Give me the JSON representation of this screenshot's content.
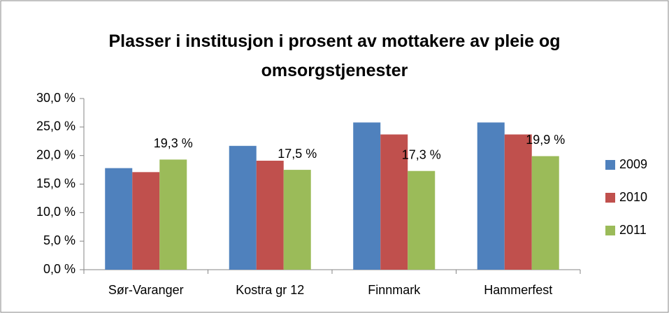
{
  "chart_data": {
    "type": "bar",
    "title": "Plasser i institusjon i prosent av mottakere av pleie og omsorgstjenester",
    "categories": [
      "Sør-Varanger",
      "Kostra gr 12",
      "Finnmark",
      "Hammerfest"
    ],
    "series": [
      {
        "name": "2009",
        "color": "#4f81bd",
        "values": [
          17.8,
          21.7,
          25.8,
          25.8
        ]
      },
      {
        "name": "2010",
        "color": "#c0504d",
        "values": [
          17.1,
          19.1,
          23.7,
          23.7
        ]
      },
      {
        "name": "2011",
        "color": "#9bbb59",
        "values": [
          19.3,
          17.5,
          17.3,
          19.9
        ],
        "value_labels": [
          "19,3 %",
          "17,5 %",
          "17,3 %",
          "19,9 %"
        ]
      }
    ],
    "ylim": [
      0,
      30
    ],
    "yticks": [
      {
        "value": 0,
        "label": "0,0 %"
      },
      {
        "value": 5,
        "label": "5,0 %"
      },
      {
        "value": 10,
        "label": "10,0 %"
      },
      {
        "value": 15,
        "label": "15,0 %"
      },
      {
        "value": 20,
        "label": "20,0 %"
      },
      {
        "value": 25,
        "label": "25,0 %"
      },
      {
        "value": 30,
        "label": "30,0 %"
      }
    ],
    "grid": false,
    "legend": "right"
  }
}
